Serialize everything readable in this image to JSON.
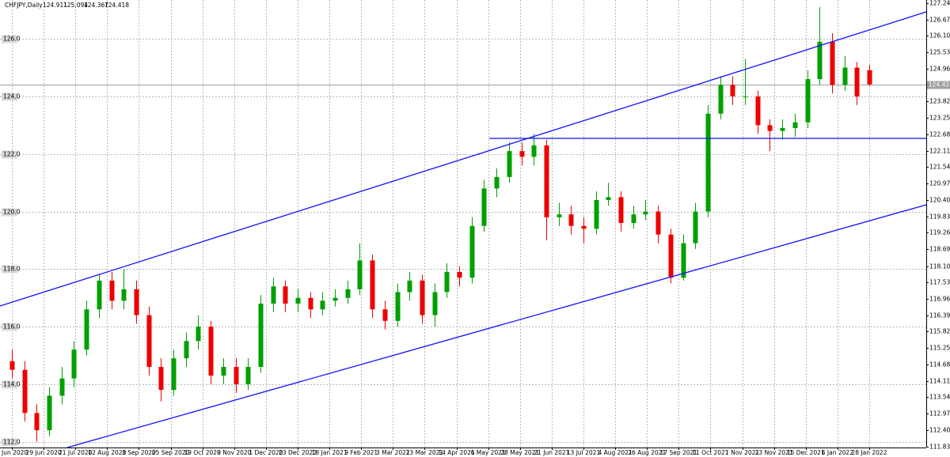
{
  "chart_data": {
    "type": "candlestick",
    "title": "CHFJPY,Daily",
    "header_values": [
      124.911,
      125.094,
      124.367,
      124.418
    ],
    "categories": [
      "5 Jun 2020",
      "29 Jun 2020",
      "21 Jul 2020",
      "12 Aug 2020",
      "3 Sep 2020",
      "25 Sep 2020",
      "19 Oct 2020",
      "9 Nov 2020",
      "1 Dec 2020",
      "23 Dec 2020",
      "18 Jan 2021",
      "9 Feb 2021",
      "3 Mar 2021",
      "23 Mar 2021",
      "14 Apr 2021",
      "6 May 2021",
      "28 May 2021",
      "21 Jun 2021",
      "13 Jul 2021",
      "4 Aug 2021",
      "26 Aug 2021",
      "17 Sep 2021",
      "11 Oct 2021",
      "1 Nov 2021",
      "23 Nov 2021",
      "15 Dec 2021",
      "6 Jan 2022",
      "28 Jan 2022"
    ],
    "ohlc": [
      [
        114.8,
        115.2,
        114.2,
        114.5
      ],
      [
        114.5,
        114.8,
        112.7,
        113.0
      ],
      [
        113.0,
        113.3,
        112.0,
        112.4
      ],
      [
        112.4,
        113.9,
        112.2,
        113.6
      ],
      [
        113.6,
        114.6,
        113.3,
        114.2
      ],
      [
        114.2,
        115.5,
        113.9,
        115.2
      ],
      [
        115.2,
        116.9,
        115.0,
        116.6
      ],
      [
        116.6,
        117.8,
        116.3,
        117.6
      ],
      [
        117.6,
        117.9,
        116.6,
        116.9
      ],
      [
        116.9,
        118.0,
        116.6,
        117.3
      ],
      [
        117.3,
        117.6,
        116.1,
        116.4
      ],
      [
        116.4,
        116.7,
        114.3,
        114.6
      ],
      [
        114.6,
        114.9,
        113.4,
        113.8
      ],
      [
        113.8,
        115.2,
        113.6,
        114.9
      ],
      [
        114.9,
        115.8,
        114.6,
        115.5
      ],
      [
        115.5,
        116.4,
        115.2,
        116.0
      ],
      [
        116.0,
        116.2,
        114.0,
        114.3
      ],
      [
        114.3,
        114.9,
        114.0,
        114.6
      ],
      [
        114.6,
        114.9,
        113.7,
        114.0
      ],
      [
        114.0,
        114.9,
        113.8,
        114.6
      ],
      [
        114.6,
        117.1,
        114.4,
        116.8
      ],
      [
        116.8,
        117.7,
        116.5,
        117.4
      ],
      [
        117.4,
        117.6,
        116.5,
        116.8
      ],
      [
        116.8,
        117.3,
        116.5,
        117.0
      ],
      [
        117.0,
        117.2,
        116.3,
        116.6
      ],
      [
        116.6,
        117.2,
        116.4,
        116.9
      ],
      [
        116.9,
        117.3,
        116.7,
        117.0
      ],
      [
        117.0,
        117.6,
        116.8,
        117.3
      ],
      [
        117.3,
        118.9,
        117.1,
        118.3
      ],
      [
        118.3,
        118.5,
        116.3,
        116.6
      ],
      [
        116.6,
        116.9,
        115.9,
        116.2
      ],
      [
        116.2,
        117.5,
        116.0,
        117.2
      ],
      [
        117.2,
        117.9,
        116.9,
        117.6
      ],
      [
        117.6,
        117.8,
        116.1,
        116.4
      ],
      [
        116.4,
        117.5,
        116.0,
        117.2
      ],
      [
        117.2,
        118.2,
        117.0,
        117.9
      ],
      [
        117.9,
        118.1,
        117.4,
        117.7
      ],
      [
        117.7,
        119.8,
        117.5,
        119.5
      ],
      [
        119.5,
        121.1,
        119.3,
        120.8
      ],
      [
        120.8,
        121.5,
        120.5,
        121.2
      ],
      [
        121.2,
        122.4,
        121.0,
        122.1
      ],
      [
        122.1,
        122.4,
        121.6,
        121.9
      ],
      [
        121.9,
        122.7,
        121.6,
        122.3
      ],
      [
        122.3,
        122.5,
        119.0,
        119.8
      ],
      [
        119.8,
        120.3,
        119.5,
        119.9
      ],
      [
        119.9,
        120.2,
        119.2,
        119.5
      ],
      [
        119.5,
        119.8,
        118.9,
        119.4
      ],
      [
        119.4,
        120.7,
        119.2,
        120.4
      ],
      [
        120.4,
        121.0,
        120.2,
        120.5
      ],
      [
        120.5,
        120.7,
        119.3,
        119.6
      ],
      [
        119.6,
        120.2,
        119.4,
        119.9
      ],
      [
        119.9,
        120.4,
        119.7,
        120.0
      ],
      [
        120.0,
        120.2,
        118.9,
        119.2
      ],
      [
        119.2,
        119.4,
        117.5,
        117.7
      ],
      [
        117.7,
        119.2,
        117.6,
        118.9
      ],
      [
        118.9,
        120.3,
        118.7,
        120.0
      ],
      [
        120.0,
        123.7,
        119.8,
        123.4
      ],
      [
        123.4,
        124.7,
        123.2,
        124.4
      ],
      [
        124.4,
        124.7,
        123.7,
        124.0
      ],
      [
        124.0,
        125.3,
        123.7,
        124.0
      ],
      [
        124.0,
        124.2,
        122.7,
        123.0
      ],
      [
        123.0,
        123.2,
        122.1,
        122.8
      ],
      [
        122.8,
        123.2,
        122.5,
        122.9
      ],
      [
        122.9,
        123.4,
        122.6,
        123.1
      ],
      [
        123.1,
        124.9,
        122.9,
        124.6
      ],
      [
        124.6,
        127.1,
        124.4,
        125.9
      ],
      [
        125.9,
        126.2,
        124.1,
        124.4
      ],
      [
        124.4,
        125.4,
        124.2,
        125.0
      ],
      [
        125.0,
        125.2,
        123.7,
        124.0
      ],
      [
        124.911,
        125.094,
        124.367,
        124.418
      ]
    ],
    "up_color": "#00a000",
    "down_color": "#ee0000",
    "ylim": [
      111.8,
      127.35
    ],
    "yticks": [
      {
        "value": 126,
        "label": "126.0"
      },
      {
        "value": 124,
        "label": "124.0"
      },
      {
        "value": 122,
        "label": "122.0"
      },
      {
        "value": 120,
        "label": "120.0"
      },
      {
        "value": 118,
        "label": "118.0"
      },
      {
        "value": 116,
        "label": "116.0"
      },
      {
        "value": 114,
        "label": "114.0"
      },
      {
        "value": 112,
        "label": "112.0"
      }
    ],
    "y2lim": [
      111.8,
      127.35
    ],
    "y2ticks": [
      {
        "value": 127.24,
        "label": "127.240"
      },
      {
        "value": 126.67,
        "label": "126.670"
      },
      {
        "value": 126.1,
        "label": "126.100"
      },
      {
        "value": 125.53,
        "label": "125.530"
      },
      {
        "value": 124.96,
        "label": "124.960"
      },
      {
        "value": 124.39,
        "label": "124.390"
      },
      {
        "value": 123.82,
        "label": "123.820"
      },
      {
        "value": 123.25,
        "label": "123.250"
      },
      {
        "value": 122.68,
        "label": "122.680"
      },
      {
        "value": 122.11,
        "label": "122.110"
      },
      {
        "value": 121.54,
        "label": "121.540"
      },
      {
        "value": 120.97,
        "label": "120.970"
      },
      {
        "value": 120.4,
        "label": "120.400"
      },
      {
        "value": 119.83,
        "label": "119.830"
      },
      {
        "value": 119.26,
        "label": "119.260"
      },
      {
        "value": 118.69,
        "label": "118.690"
      },
      118.105,
      117.535,
      116.965,
      116.395,
      115.825,
      115.255,
      114.685,
      114.115,
      113.545,
      112.975,
      112.405,
      111.835
    ],
    "grid": true
  }
}
